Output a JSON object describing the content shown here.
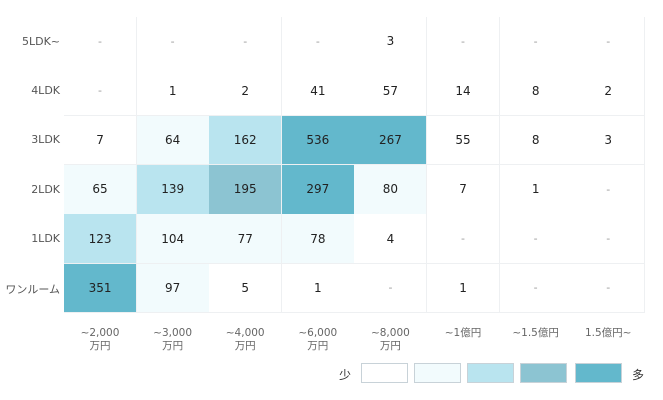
{
  "chart_data": {
    "type": "heatmap",
    "title": "",
    "xlabel": "",
    "ylabel": "",
    "rows": [
      "5LDK~",
      "4LDK",
      "3LDK",
      "2LDK",
      "1LDK",
      "ワンルーム"
    ],
    "columns": [
      "~2,000\n万円",
      "~3,000\n万円",
      "~4,000\n万円",
      "~6,000\n万円",
      "~8,000\n万円",
      "~1億円",
      "~1.5億円",
      "1.5億円~"
    ],
    "values": [
      [
        "-",
        "-",
        "-",
        "-",
        "3",
        "-",
        "-",
        "-"
      ],
      [
        "-",
        "1",
        "2",
        "41",
        "57",
        "14",
        "8",
        "2"
      ],
      [
        "7",
        "64",
        "162",
        "536",
        "267",
        "55",
        "8",
        "3"
      ],
      [
        "65",
        "139",
        "195",
        "297",
        "80",
        "7",
        "1",
        "-"
      ],
      [
        "123",
        "104",
        "77",
        "78",
        "4",
        "-",
        "-",
        "-"
      ],
      [
        "351",
        "97",
        "5",
        "1",
        "-",
        "1",
        "-",
        "-"
      ]
    ],
    "levels": [
      [
        0,
        0,
        0,
        0,
        0,
        0,
        0,
        0
      ],
      [
        0,
        0,
        0,
        0,
        0,
        0,
        0,
        0
      ],
      [
        0,
        1,
        2,
        4,
        4,
        0,
        0,
        0
      ],
      [
        1,
        2,
        3,
        4,
        1,
        0,
        0,
        0
      ],
      [
        2,
        1,
        1,
        1,
        0,
        0,
        0,
        0
      ],
      [
        4,
        1,
        0,
        0,
        0,
        0,
        0,
        0
      ]
    ],
    "level_colors": [
      "#ffffff",
      "#f2fbfd",
      "#b9e4ef",
      "#8cc4d2",
      "#63b8cc"
    ],
    "legend": {
      "low_label": "少",
      "high_label": "多",
      "placement": "bottom-right"
    }
  }
}
